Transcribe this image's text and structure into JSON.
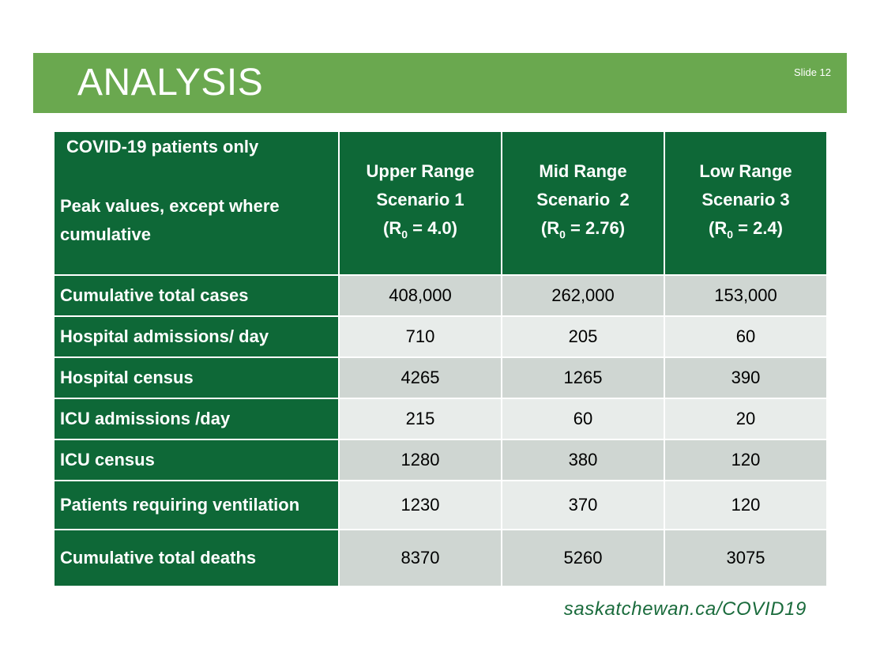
{
  "slide": {
    "title": "ANALYSIS",
    "slide_number": "Slide 12",
    "footer_url": "saskatchewan.ca/COVID19"
  },
  "table": {
    "header_line1": "COVID-19 patients only",
    "header_line2": "Peak values, except where cumulative",
    "scenarios": [
      {
        "line1": "Upper Range",
        "line2": "Scenario 1",
        "r0_prefix": "(R",
        "r0_sub": "0",
        "r0_value": " = 4.0)"
      },
      {
        "line1": "Mid Range",
        "line2": "Scenario  2",
        "r0_prefix": "(R",
        "r0_sub": "0",
        "r0_value": " = 2.76)"
      },
      {
        "line1": "Low Range",
        "line2": "Scenario 3",
        "r0_prefix": "(R",
        "r0_sub": "0",
        "r0_value": " = 2.4)"
      }
    ],
    "rows": [
      {
        "label": "Cumulative total cases",
        "values": [
          "408,000",
          "262,000",
          "153,000"
        ]
      },
      {
        "label": "Hospital admissions/ day",
        "values": [
          "710",
          "205",
          "60"
        ]
      },
      {
        "label": "Hospital census",
        "values": [
          "4265",
          "1265",
          "390"
        ]
      },
      {
        "label": "ICU admissions /day",
        "values": [
          "215",
          "60",
          "20"
        ]
      },
      {
        "label": "ICU census",
        "values": [
          "1280",
          "380",
          "120"
        ]
      },
      {
        "label": "Patients requiring ventilation",
        "values": [
          "1230",
          "370",
          "120"
        ]
      },
      {
        "label": "Cumulative total deaths",
        "values": [
          "8370",
          "5260",
          "3075"
        ]
      }
    ]
  },
  "colors": {
    "title_bar": "#6aa84f",
    "header_green": "#0e6837",
    "row_shade": "#cfd6d2",
    "row_light": "#e8ecea"
  }
}
